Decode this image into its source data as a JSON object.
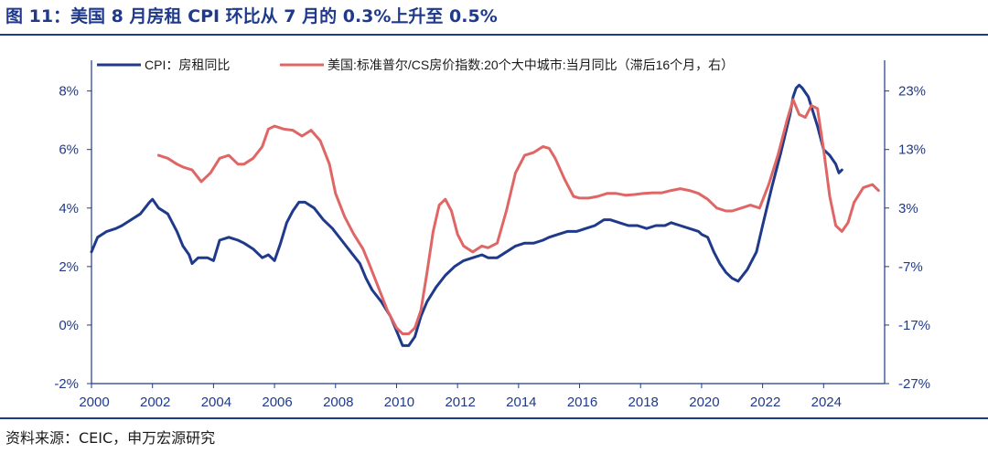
{
  "page": {
    "title": "图 11：美国 8 月房租 CPI 环比从 7 月的 0.3%上升至 0.5%",
    "source": "资料来源：CEIC，申万宏源研究"
  },
  "colors": {
    "cpi": "#1f3a8a",
    "cs": "#e06666",
    "axis": "#1f3a8a",
    "tick_text": "#1f3a8a"
  },
  "chart_data": {
    "type": "line",
    "title": "图 11：美国 8 月房租 CPI 环比从 7 月的 0.3%上升至 0.5%",
    "xlim": [
      2000,
      2026
    ],
    "x_ticks": [
      2000,
      2002,
      2004,
      2006,
      2008,
      2010,
      2012,
      2014,
      2016,
      2018,
      2020,
      2022,
      2024
    ],
    "x_tick_labels": [
      "2000",
      "2002",
      "2004",
      "2006",
      "2008",
      "2010",
      "2012",
      "2014",
      "2016",
      "2018",
      "2020",
      "2022",
      "2024"
    ],
    "y_left": {
      "lim": [
        -2,
        8.8
      ],
      "ticks": [
        -2,
        0,
        2,
        4,
        6,
        8
      ],
      "tick_labels": [
        "-2%",
        "0%",
        "2%",
        "4%",
        "6%",
        "8%"
      ]
    },
    "y_right": {
      "lim": [
        -27,
        27
      ],
      "ticks": [
        -27,
        -17,
        -7,
        3,
        13,
        23
      ],
      "tick_labels": [
        "-27%",
        "-17%",
        "-7%",
        "3%",
        "13%",
        "23%"
      ]
    },
    "legend_position": "top",
    "series": [
      {
        "name": "CPI：房租同比",
        "axis": "left",
        "color": "#1f3a8a",
        "x": [
          2000.0,
          2000.2,
          2000.5,
          2000.8,
          2001.0,
          2001.3,
          2001.6,
          2001.9,
          2002.0,
          2002.2,
          2002.5,
          2002.8,
          2003.0,
          2003.2,
          2003.3,
          2003.5,
          2003.8,
          2004.0,
          2004.2,
          2004.5,
          2004.8,
          2005.0,
          2005.3,
          2005.6,
          2005.8,
          2006.0,
          2006.2,
          2006.4,
          2006.6,
          2006.8,
          2007.0,
          2007.3,
          2007.6,
          2007.9,
          2008.2,
          2008.5,
          2008.8,
          2009.0,
          2009.2,
          2009.5,
          2009.8,
          2010.0,
          2010.2,
          2010.4,
          2010.6,
          2010.8,
          2011.0,
          2011.3,
          2011.6,
          2011.9,
          2012.2,
          2012.5,
          2012.8,
          2013.0,
          2013.3,
          2013.6,
          2013.9,
          2014.2,
          2014.5,
          2014.8,
          2015.0,
          2015.3,
          2015.6,
          2015.9,
          2016.2,
          2016.5,
          2016.8,
          2017.0,
          2017.3,
          2017.6,
          2017.9,
          2018.2,
          2018.5,
          2018.8,
          2019.0,
          2019.3,
          2019.6,
          2019.9,
          2020.0,
          2020.2,
          2020.4,
          2020.6,
          2020.8,
          2021.0,
          2021.2,
          2021.5,
          2021.8,
          2022.0,
          2022.3,
          2022.6,
          2022.9,
          2023.0,
          2023.1,
          2023.2,
          2023.3,
          2023.5,
          2023.8,
          2024.0,
          2024.2,
          2024.4,
          2024.5,
          2024.6
        ],
        "values": [
          2.5,
          3.0,
          3.2,
          3.3,
          3.4,
          3.6,
          3.8,
          4.2,
          4.3,
          4.0,
          3.8,
          3.2,
          2.7,
          2.4,
          2.1,
          2.3,
          2.3,
          2.2,
          2.9,
          3.0,
          2.9,
          2.8,
          2.6,
          2.3,
          2.4,
          2.2,
          2.8,
          3.5,
          3.9,
          4.2,
          4.2,
          4.0,
          3.6,
          3.3,
          2.9,
          2.5,
          2.1,
          1.6,
          1.2,
          0.8,
          0.3,
          -0.2,
          -0.7,
          -0.7,
          -0.4,
          0.3,
          0.8,
          1.3,
          1.7,
          2.0,
          2.2,
          2.3,
          2.4,
          2.3,
          2.3,
          2.5,
          2.7,
          2.8,
          2.8,
          2.9,
          3.0,
          3.1,
          3.2,
          3.2,
          3.3,
          3.4,
          3.6,
          3.6,
          3.5,
          3.4,
          3.4,
          3.3,
          3.4,
          3.4,
          3.5,
          3.4,
          3.3,
          3.2,
          3.1,
          3.0,
          2.5,
          2.1,
          1.8,
          1.6,
          1.5,
          1.9,
          2.5,
          3.4,
          4.7,
          5.9,
          7.2,
          7.8,
          8.1,
          8.2,
          8.1,
          7.8,
          6.8,
          6.0,
          5.8,
          5.5,
          5.2,
          5.3
        ]
      },
      {
        "name": "美国:标准普尔/CS房价指数:20个大中城市:当月同比（滞后16个月，右）",
        "axis": "right",
        "color": "#e06666",
        "x": [
          2002.2,
          2002.5,
          2002.8,
          2003.0,
          2003.3,
          2003.6,
          2003.9,
          2004.2,
          2004.5,
          2004.8,
          2005.0,
          2005.3,
          2005.6,
          2005.8,
          2006.0,
          2006.3,
          2006.6,
          2006.9,
          2007.2,
          2007.5,
          2007.8,
          2008.0,
          2008.3,
          2008.6,
          2008.9,
          2009.1,
          2009.4,
          2009.7,
          2010.0,
          2010.2,
          2010.4,
          2010.6,
          2010.8,
          2011.0,
          2011.2,
          2011.4,
          2011.6,
          2011.8,
          2012.0,
          2012.2,
          2012.5,
          2012.8,
          2013.0,
          2013.3,
          2013.6,
          2013.9,
          2014.2,
          2014.5,
          2014.8,
          2015.0,
          2015.2,
          2015.5,
          2015.8,
          2016.0,
          2016.3,
          2016.6,
          2016.9,
          2017.2,
          2017.5,
          2017.8,
          2018.1,
          2018.4,
          2018.7,
          2019.0,
          2019.3,
          2019.6,
          2019.9,
          2020.2,
          2020.5,
          2020.8,
          2021.0,
          2021.3,
          2021.6,
          2021.9,
          2022.2,
          2022.5,
          2022.8,
          2023.0,
          2023.2,
          2023.4,
          2023.6,
          2023.8,
          2024.0,
          2024.2,
          2024.4,
          2024.6,
          2024.8,
          2025.0,
          2025.3,
          2025.6,
          2025.8
        ],
        "values": [
          12.0,
          11.5,
          10.5,
          10.0,
          9.5,
          7.5,
          9.0,
          11.5,
          12.0,
          10.5,
          10.5,
          11.5,
          13.5,
          16.5,
          17.0,
          16.5,
          16.3,
          15.3,
          16.3,
          14.5,
          10.5,
          5.5,
          1.5,
          -1.5,
          -4.0,
          -6.5,
          -10.5,
          -14.5,
          -17.5,
          -18.5,
          -18.5,
          -17.5,
          -14.5,
          -8.0,
          -1.0,
          3.5,
          4.5,
          2.5,
          -1.5,
          -3.5,
          -4.5,
          -3.5,
          -3.8,
          -3.0,
          2.5,
          9.0,
          12.0,
          12.5,
          13.5,
          13.2,
          11.5,
          8.0,
          5.0,
          4.7,
          4.7,
          5.0,
          5.5,
          5.5,
          5.2,
          5.3,
          5.5,
          5.6,
          5.6,
          6.0,
          6.3,
          6.0,
          5.5,
          4.5,
          3.0,
          2.5,
          2.5,
          3.0,
          3.5,
          3.0,
          7.0,
          12.0,
          18.0,
          21.5,
          19.0,
          18.5,
          20.5,
          20.0,
          13.0,
          5.0,
          0.0,
          -1.0,
          0.5,
          4.0,
          6.5,
          7.0,
          6.0
        ]
      }
    ]
  }
}
